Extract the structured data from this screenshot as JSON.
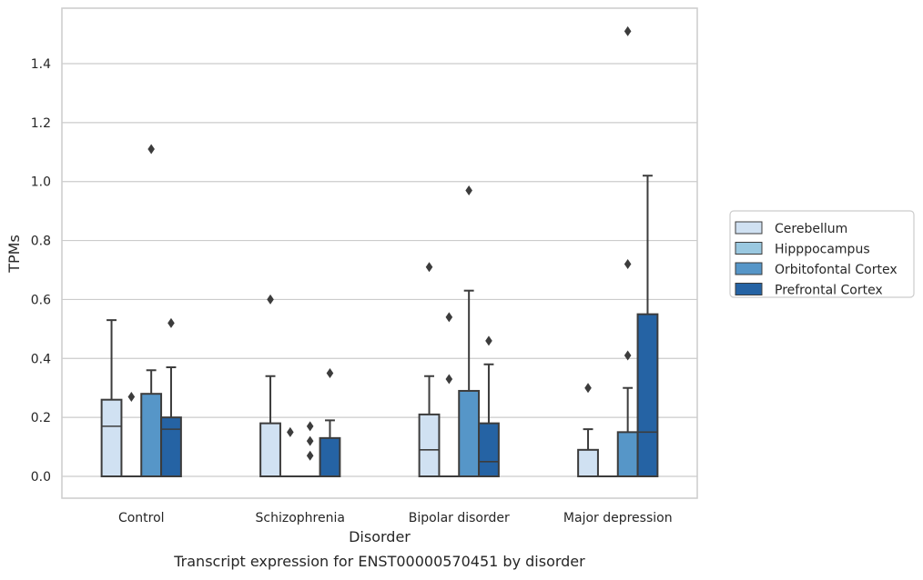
{
  "chart_data": {
    "type": "boxplot",
    "title": "",
    "caption": "Transcript expression for ENST00000570451 by disorder",
    "xlabel": "Disorder",
    "ylabel": "TPMs",
    "ylim": [
      -0.075,
      1.59
    ],
    "yticks": [
      0.0,
      0.2,
      0.4,
      0.6,
      0.8,
      1.0,
      1.2,
      1.4
    ],
    "ytick_labels": [
      "0.0",
      "0.2",
      "0.4",
      "0.6",
      "0.8",
      "1.0",
      "1.2",
      "1.4"
    ],
    "grid": "horizontal",
    "legend_position": "right",
    "categories": [
      "Control",
      "Schizophrenia",
      "Bipolar disorder",
      "Major depression"
    ],
    "series": [
      {
        "name": "Cerebellum",
        "color": "#d0e1f2",
        "boxes": [
          {
            "q1": 0.0,
            "median": 0.17,
            "q3": 0.26,
            "whisker_low": 0.0,
            "whisker_high": 0.53,
            "outliers": []
          },
          {
            "q1": 0.0,
            "median": 0.0,
            "q3": 0.18,
            "whisker_low": 0.0,
            "whisker_high": 0.34,
            "outliers": [
              0.6
            ]
          },
          {
            "q1": 0.0,
            "median": 0.09,
            "q3": 0.21,
            "whisker_low": 0.0,
            "whisker_high": 0.34,
            "outliers": [
              0.71
            ]
          },
          {
            "q1": 0.0,
            "median": 0.0,
            "q3": 0.09,
            "whisker_low": 0.0,
            "whisker_high": 0.16,
            "outliers": [
              0.3
            ]
          }
        ]
      },
      {
        "name": "Hipppocampus",
        "color": "#9ac8e0",
        "boxes": [
          {
            "q1": 0.0,
            "median": 0.0,
            "q3": 0.0,
            "whisker_low": 0.0,
            "whisker_high": 0.0,
            "outliers": [
              0.27
            ]
          },
          {
            "q1": 0.0,
            "median": 0.0,
            "q3": 0.0,
            "whisker_low": 0.0,
            "whisker_high": 0.0,
            "outliers": [
              0.15
            ]
          },
          {
            "q1": 0.0,
            "median": 0.0,
            "q3": 0.0,
            "whisker_low": 0.0,
            "whisker_high": 0.0,
            "outliers": [
              0.33,
              0.54
            ]
          },
          {
            "q1": 0.0,
            "median": 0.0,
            "q3": 0.0,
            "whisker_low": 0.0,
            "whisker_high": 0.0,
            "outliers": []
          }
        ]
      },
      {
        "name": "Orbitofontal Cortex",
        "color": "#5696c8",
        "boxes": [
          {
            "q1": 0.0,
            "median": 0.0,
            "q3": 0.28,
            "whisker_low": 0.0,
            "whisker_high": 0.36,
            "outliers": [
              1.11
            ]
          },
          {
            "q1": 0.0,
            "median": 0.0,
            "q3": 0.0,
            "whisker_low": 0.0,
            "whisker_high": 0.0,
            "outliers": [
              0.07,
              0.12,
              0.17
            ]
          },
          {
            "q1": 0.0,
            "median": 0.0,
            "q3": 0.29,
            "whisker_low": 0.0,
            "whisker_high": 0.63,
            "outliers": [
              0.97
            ]
          },
          {
            "q1": 0.0,
            "median": 0.0,
            "q3": 0.15,
            "whisker_low": 0.0,
            "whisker_high": 0.3,
            "outliers": [
              0.41,
              0.72,
              1.51
            ]
          }
        ]
      },
      {
        "name": "Prefrontal Cortex",
        "color": "#2563a4",
        "boxes": [
          {
            "q1": 0.0,
            "median": 0.16,
            "q3": 0.2,
            "whisker_low": 0.0,
            "whisker_high": 0.37,
            "outliers": [
              0.52
            ]
          },
          {
            "q1": 0.0,
            "median": 0.0,
            "q3": 0.13,
            "whisker_low": 0.0,
            "whisker_high": 0.19,
            "outliers": [
              0.35
            ]
          },
          {
            "q1": 0.0,
            "median": 0.05,
            "q3": 0.18,
            "whisker_low": 0.0,
            "whisker_high": 0.38,
            "outliers": [
              0.46
            ]
          },
          {
            "q1": 0.0,
            "median": 0.15,
            "q3": 0.55,
            "whisker_low": 0.0,
            "whisker_high": 1.02,
            "outliers": []
          }
        ]
      }
    ]
  }
}
